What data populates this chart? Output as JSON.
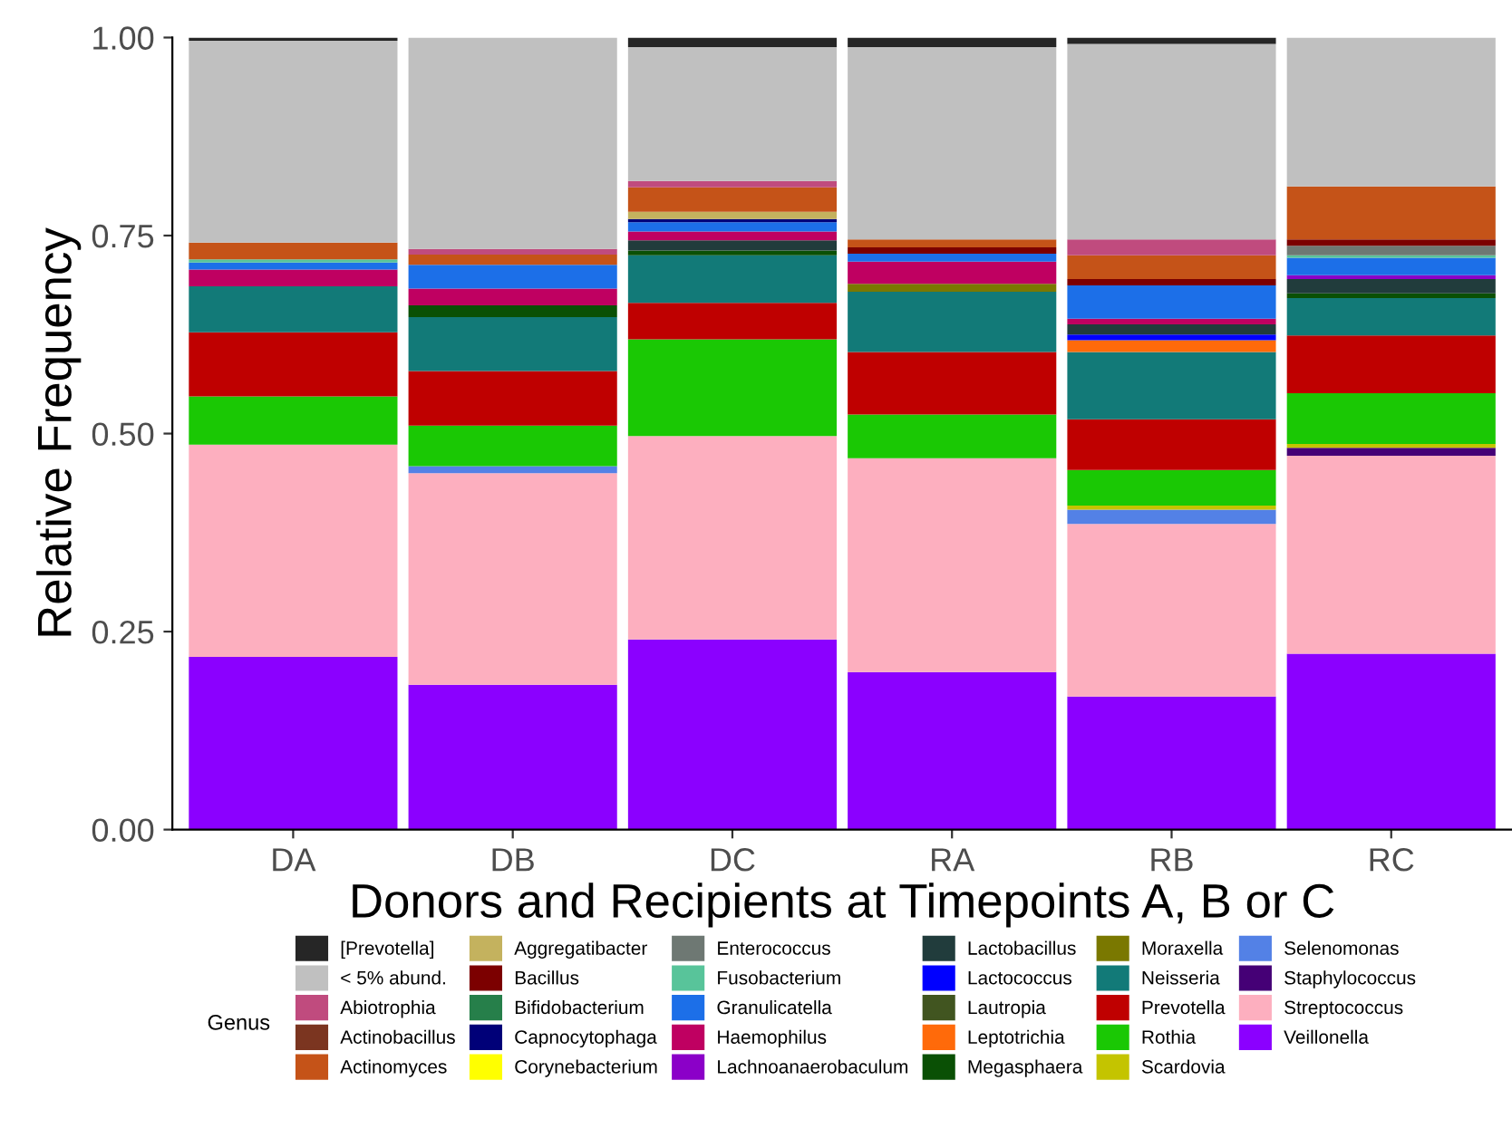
{
  "chart_data": {
    "type": "bar",
    "stacked": true,
    "xlabel": "Donors and Recipients at Timepoints A, B or C",
    "ylabel": "Relative Frequency",
    "legend_title": "Genus",
    "legend": "bottom",
    "grid": false,
    "categories": [
      "DA",
      "DB",
      "DC",
      "RA",
      "RB",
      "RC"
    ],
    "ylim": [
      0,
      1
    ],
    "yticks": [
      {
        "value": 0,
        "label": "0.00"
      },
      {
        "value": 0.25,
        "label": "0.25"
      },
      {
        "value": 0.5,
        "label": "0.50"
      },
      {
        "value": 0.75,
        "label": "0.75"
      },
      {
        "value": 1,
        "label": "1.00"
      }
    ],
    "series": [
      {
        "name": "Veillonella",
        "color": "#8b00ff",
        "values": [
          0.218,
          0.183,
          0.24,
          0.199,
          0.168,
          0.222
        ]
      },
      {
        "name": "Streptococcus",
        "color": "#fdafbf",
        "values": [
          0.268,
          0.267,
          0.257,
          0.27,
          0.218,
          0.25
        ]
      },
      {
        "name": "Staphylococcus",
        "color": "#450076",
        "values": [
          null,
          null,
          null,
          null,
          null,
          0.01
        ]
      },
      {
        "name": "Selenomonas",
        "color": "#5381e6",
        "values": [
          null,
          0.009,
          null,
          null,
          0.018,
          null
        ]
      },
      {
        "name": "Scardovia",
        "color": "#c4c400",
        "values": [
          null,
          null,
          null,
          null,
          0.005,
          0.005
        ]
      },
      {
        "name": "Rothia",
        "color": "#1ac804",
        "values": [
          0.061,
          0.051,
          0.122,
          0.055,
          0.045,
          0.064
        ]
      },
      {
        "name": "Prevotella",
        "color": "#bf0000",
        "values": [
          0.081,
          0.069,
          0.046,
          0.079,
          0.064,
          0.073
        ]
      },
      {
        "name": "Neisseria",
        "color": "#127a78",
        "values": [
          0.058,
          0.068,
          0.06,
          0.076,
          0.085,
          0.047
        ]
      },
      {
        "name": "Moraxella",
        "color": "#7a7800",
        "values": [
          null,
          null,
          null,
          0.01,
          null,
          null
        ]
      },
      {
        "name": "Megasphaera",
        "color": "#0a5005",
        "values": [
          null,
          0.015,
          0.006,
          null,
          null,
          0.006
        ]
      },
      {
        "name": "Leptotrichia",
        "color": "#ff6a0a",
        "values": [
          null,
          null,
          null,
          null,
          0.015,
          null
        ]
      },
      {
        "name": "Lautropia",
        "color": "#415520",
        "values": [
          null,
          null,
          null,
          null,
          null,
          null
        ]
      },
      {
        "name": "Lactococcus",
        "color": "#0000ff",
        "values": [
          null,
          null,
          null,
          null,
          0.007,
          null
        ]
      },
      {
        "name": "Lactobacillus",
        "color": "#213c3c",
        "values": [
          null,
          null,
          0.013,
          null,
          0.013,
          0.018
        ]
      },
      {
        "name": "Lachnoanaerobaculum",
        "color": "#8b00c8",
        "values": [
          null,
          null,
          null,
          null,
          null,
          0.005
        ]
      },
      {
        "name": "Haemophilus",
        "color": "#bf0061",
        "values": [
          0.021,
          0.021,
          0.011,
          0.028,
          0.007,
          null
        ]
      },
      {
        "name": "Granulicatella",
        "color": "#1c6fe8",
        "values": [
          0.009,
          0.03,
          0.012,
          0.01,
          0.042,
          0.022
        ]
      },
      {
        "name": "Fusobacterium",
        "color": "#58c49a",
        "values": [
          0.004,
          null,
          null,
          null,
          null,
          0.003
        ]
      },
      {
        "name": "Enterococcus",
        "color": "#6e7873",
        "values": [
          null,
          null,
          null,
          null,
          null,
          0.012
        ]
      },
      {
        "name": "Corynebacterium",
        "color": "#ffff00",
        "values": [
          null,
          null,
          null,
          null,
          null,
          null
        ]
      },
      {
        "name": "Capnocytophaga",
        "color": "#000078",
        "values": [
          null,
          null,
          0.004,
          null,
          null,
          null
        ]
      },
      {
        "name": "Bifidobacterium",
        "color": "#267f4a",
        "values": [
          null,
          null,
          null,
          null,
          null,
          null
        ]
      },
      {
        "name": "Bacillus",
        "color": "#7c0000",
        "values": [
          null,
          null,
          null,
          0.008,
          0.008,
          0.008
        ]
      },
      {
        "name": "Aggregatibacter",
        "color": "#c4b25e",
        "values": [
          null,
          null,
          0.009,
          null,
          null,
          null
        ]
      },
      {
        "name": "Actinomyces",
        "color": "#c55318",
        "values": [
          0.021,
          0.013,
          0.031,
          0.01,
          0.03,
          0.067
        ]
      },
      {
        "name": "Actinobacillus",
        "color": "#7b3520",
        "values": [
          null,
          null,
          null,
          null,
          null,
          null
        ]
      },
      {
        "name": "Abiotrophia",
        "color": "#c04b7e",
        "values": [
          null,
          0.007,
          0.008,
          null,
          0.02,
          null
        ]
      },
      {
        "name": "< 5% abund.",
        "color": "#c0c0c0",
        "values": [
          0.255,
          0.267,
          0.169,
          0.243,
          0.247,
          0.188
        ]
      },
      {
        "name": "[Prevotella]",
        "color": "#262626",
        "values": [
          0.004,
          null,
          0.012,
          0.012,
          0.008,
          null
        ]
      }
    ]
  }
}
